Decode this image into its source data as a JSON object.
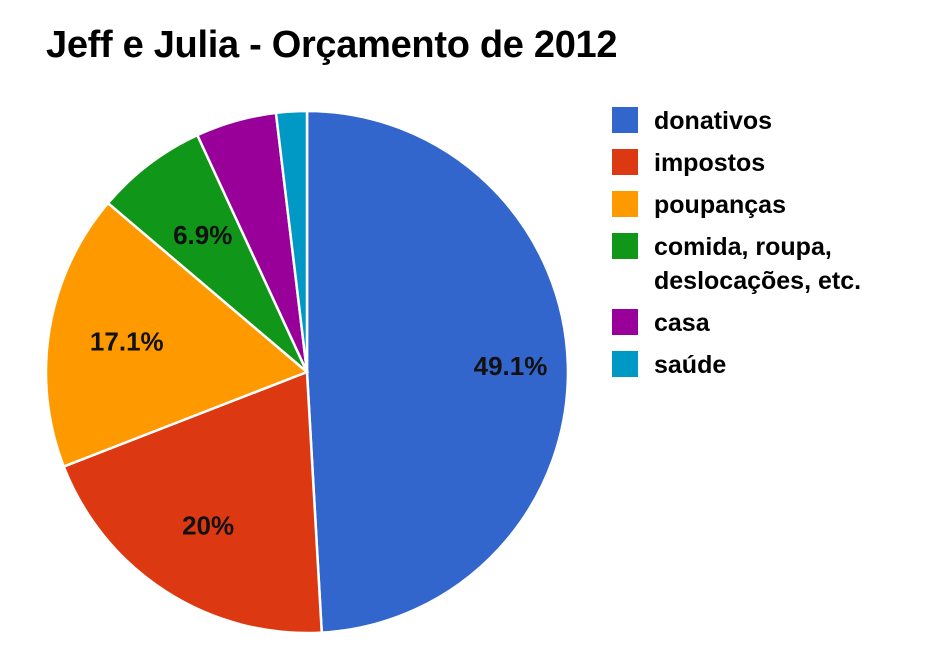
{
  "chart_data": {
    "type": "pie",
    "title": "Jeff e Julia - Orçamento de 2012",
    "slices": [
      {
        "label": "donativos",
        "value": 49.1,
        "display": "49.1%",
        "color": "#3366cc"
      },
      {
        "label": "impostos",
        "value": 20.0,
        "display": "20%",
        "color": "#dc3912"
      },
      {
        "label": "poupanças",
        "value": 17.1,
        "display": "17.1%",
        "color": "#ff9900"
      },
      {
        "label": "comida, roupa, deslocações, etc.",
        "value": 6.9,
        "display": "6.9%",
        "color": "#109618"
      },
      {
        "label": "casa",
        "value": 5.0,
        "display": "",
        "color": "#990099"
      },
      {
        "label": "saúde",
        "value": 1.9,
        "display": "",
        "color": "#0099c6"
      }
    ],
    "legend_position": "right"
  }
}
